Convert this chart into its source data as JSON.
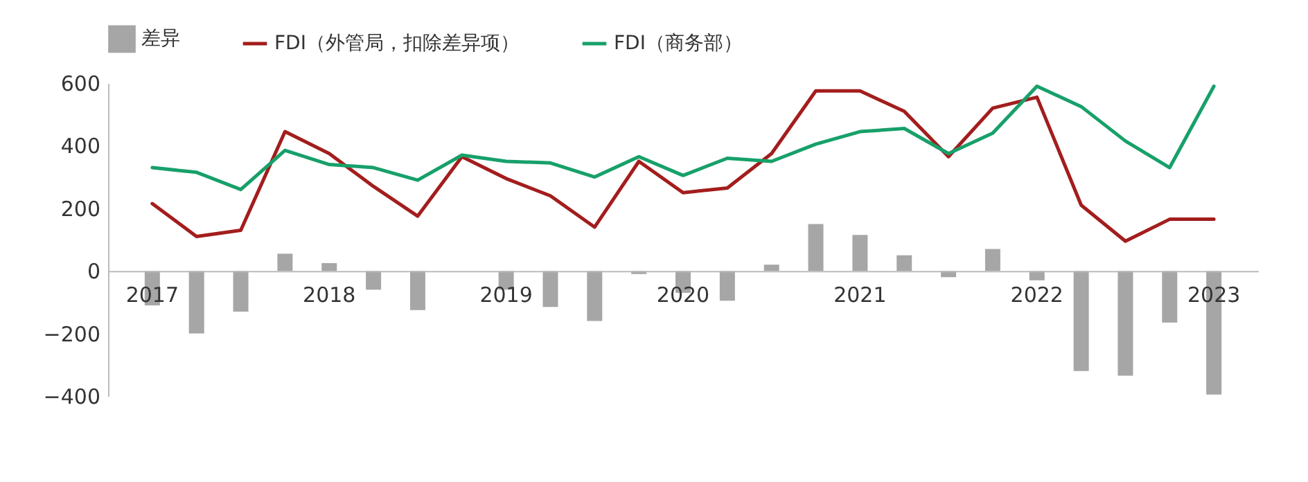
{
  "chart_data": {
    "type": "line",
    "categories": [
      "2017",
      null,
      null,
      null,
      "2018",
      null,
      null,
      null,
      "2019",
      null,
      null,
      null,
      "2020",
      null,
      null,
      null,
      "2021",
      null,
      null,
      null,
      "2022",
      null,
      null,
      null,
      "2023"
    ],
    "series": [
      {
        "name": "差异",
        "type": "bar",
        "color": "#a6a6a6",
        "values": [
          -110,
          -200,
          -130,
          55,
          25,
          -60,
          -125,
          0,
          -60,
          -115,
          -160,
          -10,
          -70,
          -95,
          20,
          150,
          115,
          50,
          -20,
          70,
          -30,
          -320,
          -335,
          -165,
          -395
        ]
      },
      {
        "name": "FDI（外管局，扣除差异项）",
        "color": "#a31d1d",
        "values": [
          215,
          110,
          130,
          445,
          375,
          270,
          175,
          365,
          295,
          240,
          140,
          350,
          250,
          265,
          375,
          575,
          575,
          510,
          365,
          520,
          555,
          210,
          95,
          165,
          165
        ]
      },
      {
        "name": "FDI（商务部）",
        "color": "#17a06a",
        "values": [
          330,
          315,
          260,
          385,
          340,
          330,
          290,
          370,
          350,
          345,
          300,
          365,
          305,
          360,
          350,
          405,
          445,
          455,
          375,
          440,
          590,
          525,
          415,
          330,
          590
        ]
      }
    ],
    "ylim": [
      -400,
      600
    ],
    "yticks": [
      -400,
      -200,
      0,
      200,
      400,
      600
    ],
    "legend": "top",
    "grid": false
  }
}
